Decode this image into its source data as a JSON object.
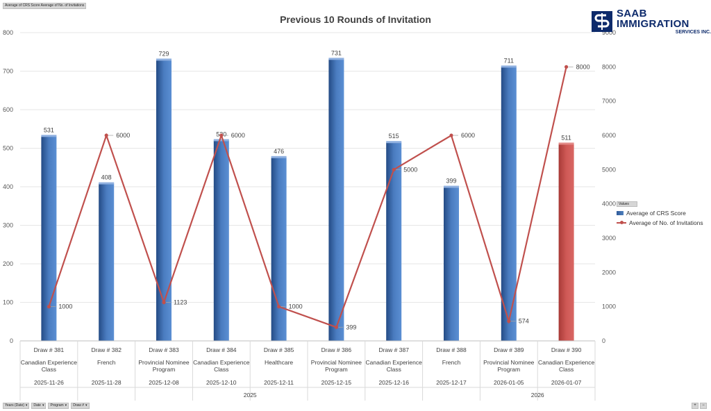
{
  "top_field_tags": [
    "Average of CRS Score",
    "Average of No. of Invitations"
  ],
  "logo": {
    "name": "SAAB IMMIGRATION",
    "sub": "SERVICES INC."
  },
  "legend": {
    "header": "Values",
    "items": [
      {
        "label": "Average of CRS Score"
      },
      {
        "label": "Average of No. of Invitations"
      }
    ]
  },
  "filters": [
    {
      "label": "Years (Date)",
      "arrow": "▾"
    },
    {
      "label": "Date",
      "arrow": "▾"
    },
    {
      "label": "Program",
      "arrow": "▾"
    },
    {
      "label": "Draw #",
      "arrow": "▾"
    }
  ],
  "zoom": [
    "+",
    "−"
  ],
  "chart_data": {
    "type": "bar",
    "title": "Previous 10 Rounds of Invitation",
    "categories": [
      {
        "draw": "Draw # 381",
        "program": "Canadian Experience Class",
        "date": "2025-11-26",
        "year": "2025"
      },
      {
        "draw": "Draw # 382",
        "program": "French",
        "date": "2025-11-28",
        "year": "2025"
      },
      {
        "draw": "Draw # 383",
        "program": "Provincial Nominee Program",
        "date": "2025-12-08",
        "year": "2025"
      },
      {
        "draw": "Draw # 384",
        "program": "Canadian Experience Class",
        "date": "2025-12-10",
        "year": "2025"
      },
      {
        "draw": "Draw # 385",
        "program": "Healthcare",
        "date": "2025-12-11",
        "year": "2025"
      },
      {
        "draw": "Draw # 386",
        "program": "Provincial Nominee Program",
        "date": "2025-12-15",
        "year": "2025"
      },
      {
        "draw": "Draw # 387",
        "program": "Canadian Experience Class",
        "date": "2025-12-16",
        "year": "2025"
      },
      {
        "draw": "Draw # 388",
        "program": "French",
        "date": "2025-12-17",
        "year": "2025"
      },
      {
        "draw": "Draw # 389",
        "program": "Provincial Nominee Program",
        "date": "2026-01-05",
        "year": "2026"
      },
      {
        "draw": "Draw # 390",
        "program": "Canadian Experience Class",
        "date": "2026-01-07",
        "year": "2026"
      }
    ],
    "years": [
      "2025",
      "2026"
    ],
    "series": [
      {
        "name": "Average of CRS Score",
        "type": "bar",
        "axis": "left",
        "values": [
          531,
          408,
          729,
          520,
          476,
          731,
          515,
          399,
          711,
          511
        ],
        "color": "#4f81bd",
        "highlight_color": "#c0504d",
        "highlight_index": 9
      },
      {
        "name": "Average of No. of Invitations",
        "type": "line",
        "axis": "right",
        "values": [
          1000,
          6000,
          1123,
          6000,
          1000,
          399,
          5000,
          6000,
          574,
          8000
        ],
        "color": "#c0504d"
      }
    ],
    "y_left": {
      "min": 0,
      "max": 800,
      "ticks": [
        0,
        100,
        200,
        300,
        400,
        500,
        600,
        700,
        800
      ]
    },
    "y_right": {
      "min": 0,
      "max": 9000,
      "ticks": [
        0,
        1000,
        2000,
        3000,
        4000,
        5000,
        6000,
        7000,
        8000,
        9000
      ]
    },
    "grid": true,
    "legend_position": "right"
  }
}
